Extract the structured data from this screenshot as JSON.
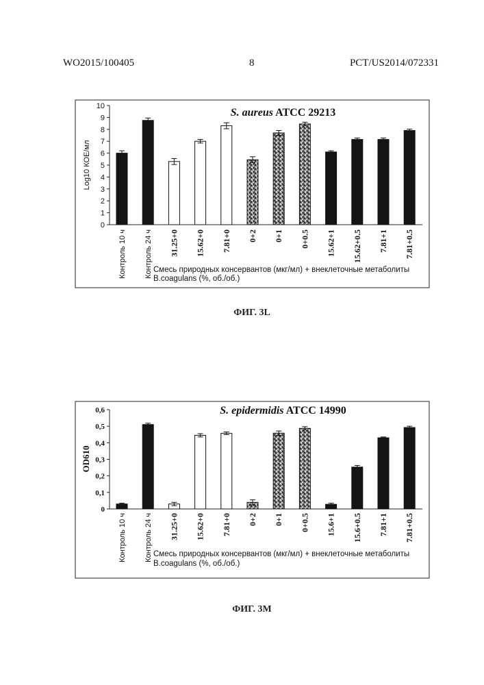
{
  "header": {
    "doc_number": "WO2015/100405",
    "page_number": "8",
    "app_number": "PCT/US2014/072331"
  },
  "chart_data": [
    {
      "type": "bar",
      "title_italic": "S. aureus",
      "title_rest": "ATCC 29213",
      "ylabel": "Log10 КОЕ/мл",
      "xlabel_line1": "Смесь природных консервантов (мкг/мл) + внеклеточные метаболиты",
      "xlabel_line2": "B.coagulans (%, об./об.)",
      "ylim": [
        0,
        10
      ],
      "yticks": [
        "0",
        "1",
        "2",
        "3",
        "4",
        "5",
        "6",
        "7",
        "8",
        "9",
        "10"
      ],
      "categories": [
        "Контроль 10 ч",
        "Контроль 24 ч",
        "31.25+0",
        "15.62+0",
        "7.81+0",
        "0+2",
        "0+1",
        "0+0.5",
        "15.62+1",
        "15.62+0.5",
        "7.81+1",
        "7.81+0.5"
      ],
      "values": [
        6.0,
        8.75,
        5.3,
        7.0,
        8.3,
        5.45,
        7.7,
        8.45,
        6.1,
        7.15,
        7.15,
        7.9
      ],
      "errors": [
        0.2,
        0.2,
        0.25,
        0.15,
        0.25,
        0.25,
        0.2,
        0.15,
        0.1,
        0.12,
        0.12,
        0.12
      ],
      "fills": [
        "black",
        "black",
        "white",
        "white",
        "white",
        "speckle",
        "speckle",
        "speckle",
        "black",
        "black",
        "black",
        "black"
      ],
      "caption": "ФИГ. 3L"
    },
    {
      "type": "bar",
      "title_italic": "S. epidermidis",
      "title_rest": "ATCC 14990",
      "ylabel": "OD610",
      "xlabel_line1": "Смесь природных консервантов (мкг/мл) + внеклеточные метаболиты",
      "xlabel_line2": "B.coagulans (%, об./об.)",
      "ylim": [
        0,
        0.6
      ],
      "yticks": [
        "0",
        "0,1",
        "0,2",
        "0,3",
        "0,4",
        "0,5",
        "0,6"
      ],
      "categories": [
        "Контроль 10 ч",
        "Контроль 24 ч",
        "31.25+0",
        "15.62+0",
        "7.81+0",
        "0+2",
        "0+1",
        "0+0.5",
        "15.6+1",
        "15.6+0.5",
        "7.81+1",
        "7.81+0.5"
      ],
      "values": [
        0.03,
        0.51,
        0.03,
        0.445,
        0.457,
        0.04,
        0.458,
        0.487,
        0.028,
        0.253,
        0.43,
        0.492
      ],
      "errors": [
        0.005,
        0.008,
        0.01,
        0.01,
        0.008,
        0.015,
        0.013,
        0.01,
        0.007,
        0.01,
        0.005,
        0.008
      ],
      "fills": [
        "black",
        "black",
        "white",
        "white",
        "white",
        "speckle",
        "speckle",
        "speckle",
        "black",
        "black",
        "black",
        "black"
      ],
      "caption": "ФИГ. 3М"
    }
  ]
}
